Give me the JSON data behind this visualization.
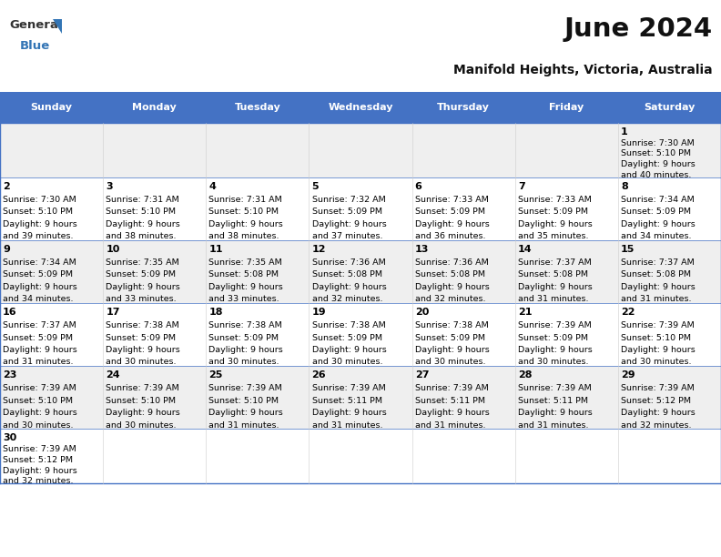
{
  "title": "June 2024",
  "subtitle": "Manifold Heights, Victoria, Australia",
  "days_of_week": [
    "Sunday",
    "Monday",
    "Tuesday",
    "Wednesday",
    "Thursday",
    "Friday",
    "Saturday"
  ],
  "header_bg": "#4472C4",
  "header_text": "#FFFFFF",
  "row_bg_odd": "#EFEFEF",
  "row_bg_even": "#FFFFFF",
  "border_color": "#4472C4",
  "text_color": "#000000",
  "calendar_data": [
    {
      "day": 1,
      "col": 6,
      "row": 0,
      "sunrise": "7:30 AM",
      "sunset": "5:10 PM",
      "daylight_hrs": 9,
      "daylight_min": 40
    },
    {
      "day": 2,
      "col": 0,
      "row": 1,
      "sunrise": "7:30 AM",
      "sunset": "5:10 PM",
      "daylight_hrs": 9,
      "daylight_min": 39
    },
    {
      "day": 3,
      "col": 1,
      "row": 1,
      "sunrise": "7:31 AM",
      "sunset": "5:10 PM",
      "daylight_hrs": 9,
      "daylight_min": 38
    },
    {
      "day": 4,
      "col": 2,
      "row": 1,
      "sunrise": "7:31 AM",
      "sunset": "5:10 PM",
      "daylight_hrs": 9,
      "daylight_min": 38
    },
    {
      "day": 5,
      "col": 3,
      "row": 1,
      "sunrise": "7:32 AM",
      "sunset": "5:09 PM",
      "daylight_hrs": 9,
      "daylight_min": 37
    },
    {
      "day": 6,
      "col": 4,
      "row": 1,
      "sunrise": "7:33 AM",
      "sunset": "5:09 PM",
      "daylight_hrs": 9,
      "daylight_min": 36
    },
    {
      "day": 7,
      "col": 5,
      "row": 1,
      "sunrise": "7:33 AM",
      "sunset": "5:09 PM",
      "daylight_hrs": 9,
      "daylight_min": 35
    },
    {
      "day": 8,
      "col": 6,
      "row": 1,
      "sunrise": "7:34 AM",
      "sunset": "5:09 PM",
      "daylight_hrs": 9,
      "daylight_min": 34
    },
    {
      "day": 9,
      "col": 0,
      "row": 2,
      "sunrise": "7:34 AM",
      "sunset": "5:09 PM",
      "daylight_hrs": 9,
      "daylight_min": 34
    },
    {
      "day": 10,
      "col": 1,
      "row": 2,
      "sunrise": "7:35 AM",
      "sunset": "5:09 PM",
      "daylight_hrs": 9,
      "daylight_min": 33
    },
    {
      "day": 11,
      "col": 2,
      "row": 2,
      "sunrise": "7:35 AM",
      "sunset": "5:08 PM",
      "daylight_hrs": 9,
      "daylight_min": 33
    },
    {
      "day": 12,
      "col": 3,
      "row": 2,
      "sunrise": "7:36 AM",
      "sunset": "5:08 PM",
      "daylight_hrs": 9,
      "daylight_min": 32
    },
    {
      "day": 13,
      "col": 4,
      "row": 2,
      "sunrise": "7:36 AM",
      "sunset": "5:08 PM",
      "daylight_hrs": 9,
      "daylight_min": 32
    },
    {
      "day": 14,
      "col": 5,
      "row": 2,
      "sunrise": "7:37 AM",
      "sunset": "5:08 PM",
      "daylight_hrs": 9,
      "daylight_min": 31
    },
    {
      "day": 15,
      "col": 6,
      "row": 2,
      "sunrise": "7:37 AM",
      "sunset": "5:08 PM",
      "daylight_hrs": 9,
      "daylight_min": 31
    },
    {
      "day": 16,
      "col": 0,
      "row": 3,
      "sunrise": "7:37 AM",
      "sunset": "5:09 PM",
      "daylight_hrs": 9,
      "daylight_min": 31
    },
    {
      "day": 17,
      "col": 1,
      "row": 3,
      "sunrise": "7:38 AM",
      "sunset": "5:09 PM",
      "daylight_hrs": 9,
      "daylight_min": 30
    },
    {
      "day": 18,
      "col": 2,
      "row": 3,
      "sunrise": "7:38 AM",
      "sunset": "5:09 PM",
      "daylight_hrs": 9,
      "daylight_min": 30
    },
    {
      "day": 19,
      "col": 3,
      "row": 3,
      "sunrise": "7:38 AM",
      "sunset": "5:09 PM",
      "daylight_hrs": 9,
      "daylight_min": 30
    },
    {
      "day": 20,
      "col": 4,
      "row": 3,
      "sunrise": "7:38 AM",
      "sunset": "5:09 PM",
      "daylight_hrs": 9,
      "daylight_min": 30
    },
    {
      "day": 21,
      "col": 5,
      "row": 3,
      "sunrise": "7:39 AM",
      "sunset": "5:09 PM",
      "daylight_hrs": 9,
      "daylight_min": 30
    },
    {
      "day": 22,
      "col": 6,
      "row": 3,
      "sunrise": "7:39 AM",
      "sunset": "5:10 PM",
      "daylight_hrs": 9,
      "daylight_min": 30
    },
    {
      "day": 23,
      "col": 0,
      "row": 4,
      "sunrise": "7:39 AM",
      "sunset": "5:10 PM",
      "daylight_hrs": 9,
      "daylight_min": 30
    },
    {
      "day": 24,
      "col": 1,
      "row": 4,
      "sunrise": "7:39 AM",
      "sunset": "5:10 PM",
      "daylight_hrs": 9,
      "daylight_min": 30
    },
    {
      "day": 25,
      "col": 2,
      "row": 4,
      "sunrise": "7:39 AM",
      "sunset": "5:10 PM",
      "daylight_hrs": 9,
      "daylight_min": 31
    },
    {
      "day": 26,
      "col": 3,
      "row": 4,
      "sunrise": "7:39 AM",
      "sunset": "5:11 PM",
      "daylight_hrs": 9,
      "daylight_min": 31
    },
    {
      "day": 27,
      "col": 4,
      "row": 4,
      "sunrise": "7:39 AM",
      "sunset": "5:11 PM",
      "daylight_hrs": 9,
      "daylight_min": 31
    },
    {
      "day": 28,
      "col": 5,
      "row": 4,
      "sunrise": "7:39 AM",
      "sunset": "5:11 PM",
      "daylight_hrs": 9,
      "daylight_min": 31
    },
    {
      "day": 29,
      "col": 6,
      "row": 4,
      "sunrise": "7:39 AM",
      "sunset": "5:12 PM",
      "daylight_hrs": 9,
      "daylight_min": 32
    },
    {
      "day": 30,
      "col": 0,
      "row": 5,
      "sunrise": "7:39 AM",
      "sunset": "5:12 PM",
      "daylight_hrs": 9,
      "daylight_min": 32
    }
  ],
  "num_rows": 6,
  "figwidth": 7.92,
  "figheight": 6.12,
  "dpi": 100
}
